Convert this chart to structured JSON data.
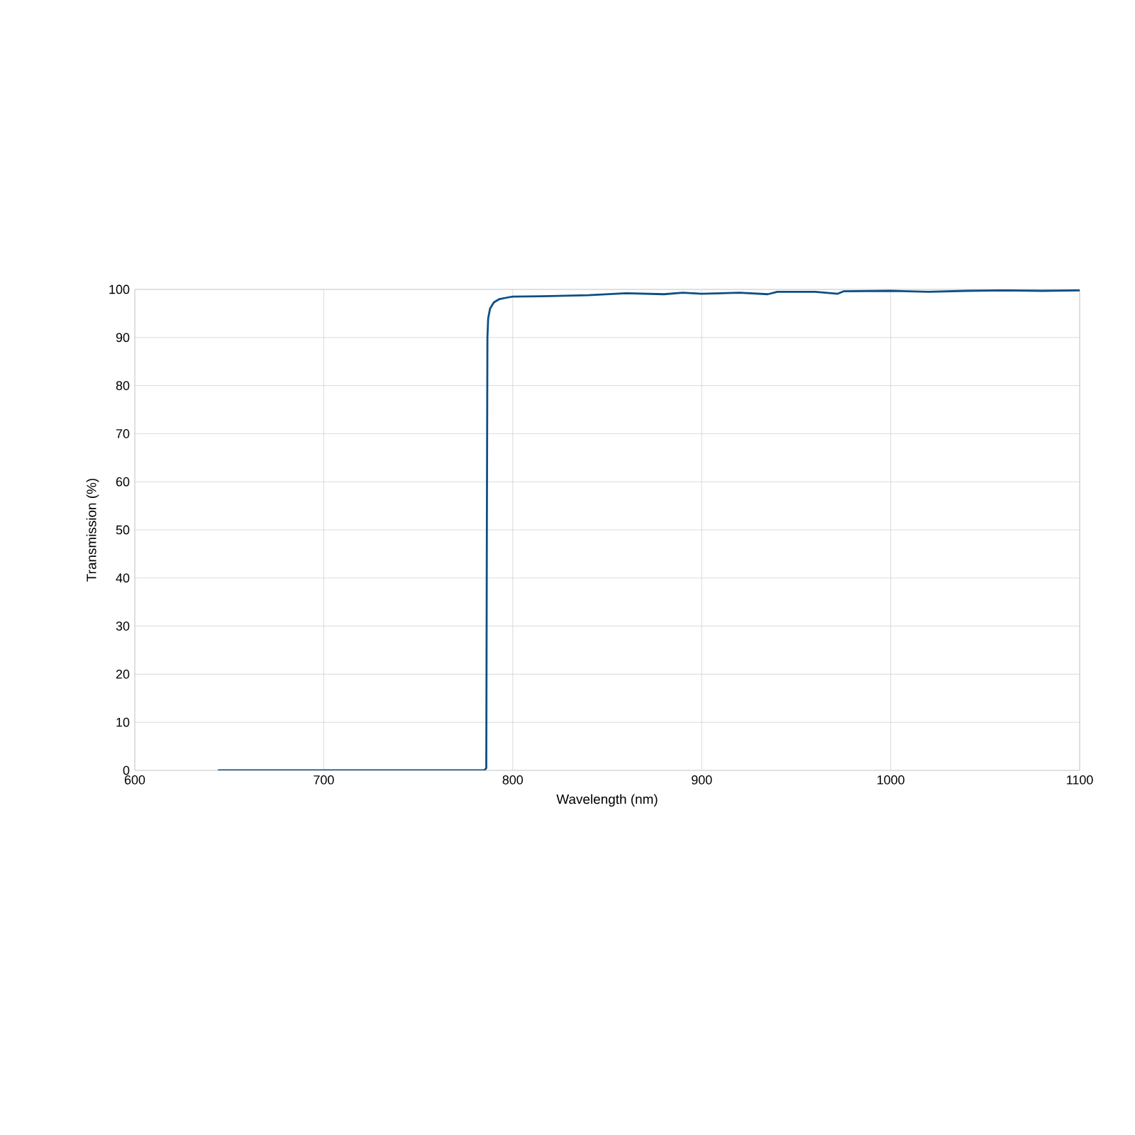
{
  "chart_data": {
    "type": "line",
    "xlabel": "Wavelength (nm)",
    "ylabel": "Transmission (%)",
    "x": [
      644,
      785,
      786,
      786.3,
      786.6,
      787,
      788,
      790,
      793,
      797,
      800,
      820,
      840,
      860,
      880,
      890,
      900,
      920,
      935,
      940,
      960,
      972,
      975,
      1000,
      1020,
      1040,
      1060,
      1080,
      1100
    ],
    "series": [
      {
        "color": "#0d4f85",
        "values": [
          0,
          0,
          0.5,
          50,
          90,
          94,
          96,
          97.3,
          98,
          98.3,
          98.5,
          98.6,
          98.8,
          99.2,
          99.0,
          99.3,
          99.1,
          99.3,
          99.0,
          99.5,
          99.5,
          99.1,
          99.6,
          99.7,
          99.5,
          99.7,
          99.8,
          99.7,
          99.8
        ]
      }
    ],
    "xlim": [
      600,
      1100
    ],
    "ylim": [
      0,
      100
    ],
    "xticks": [
      600,
      700,
      800,
      900,
      1000,
      1100
    ],
    "yticks": [
      0,
      10,
      20,
      30,
      40,
      50,
      60,
      70,
      80,
      90,
      100
    ],
    "grid": true,
    "marker": "none",
    "line_style": "solid"
  }
}
